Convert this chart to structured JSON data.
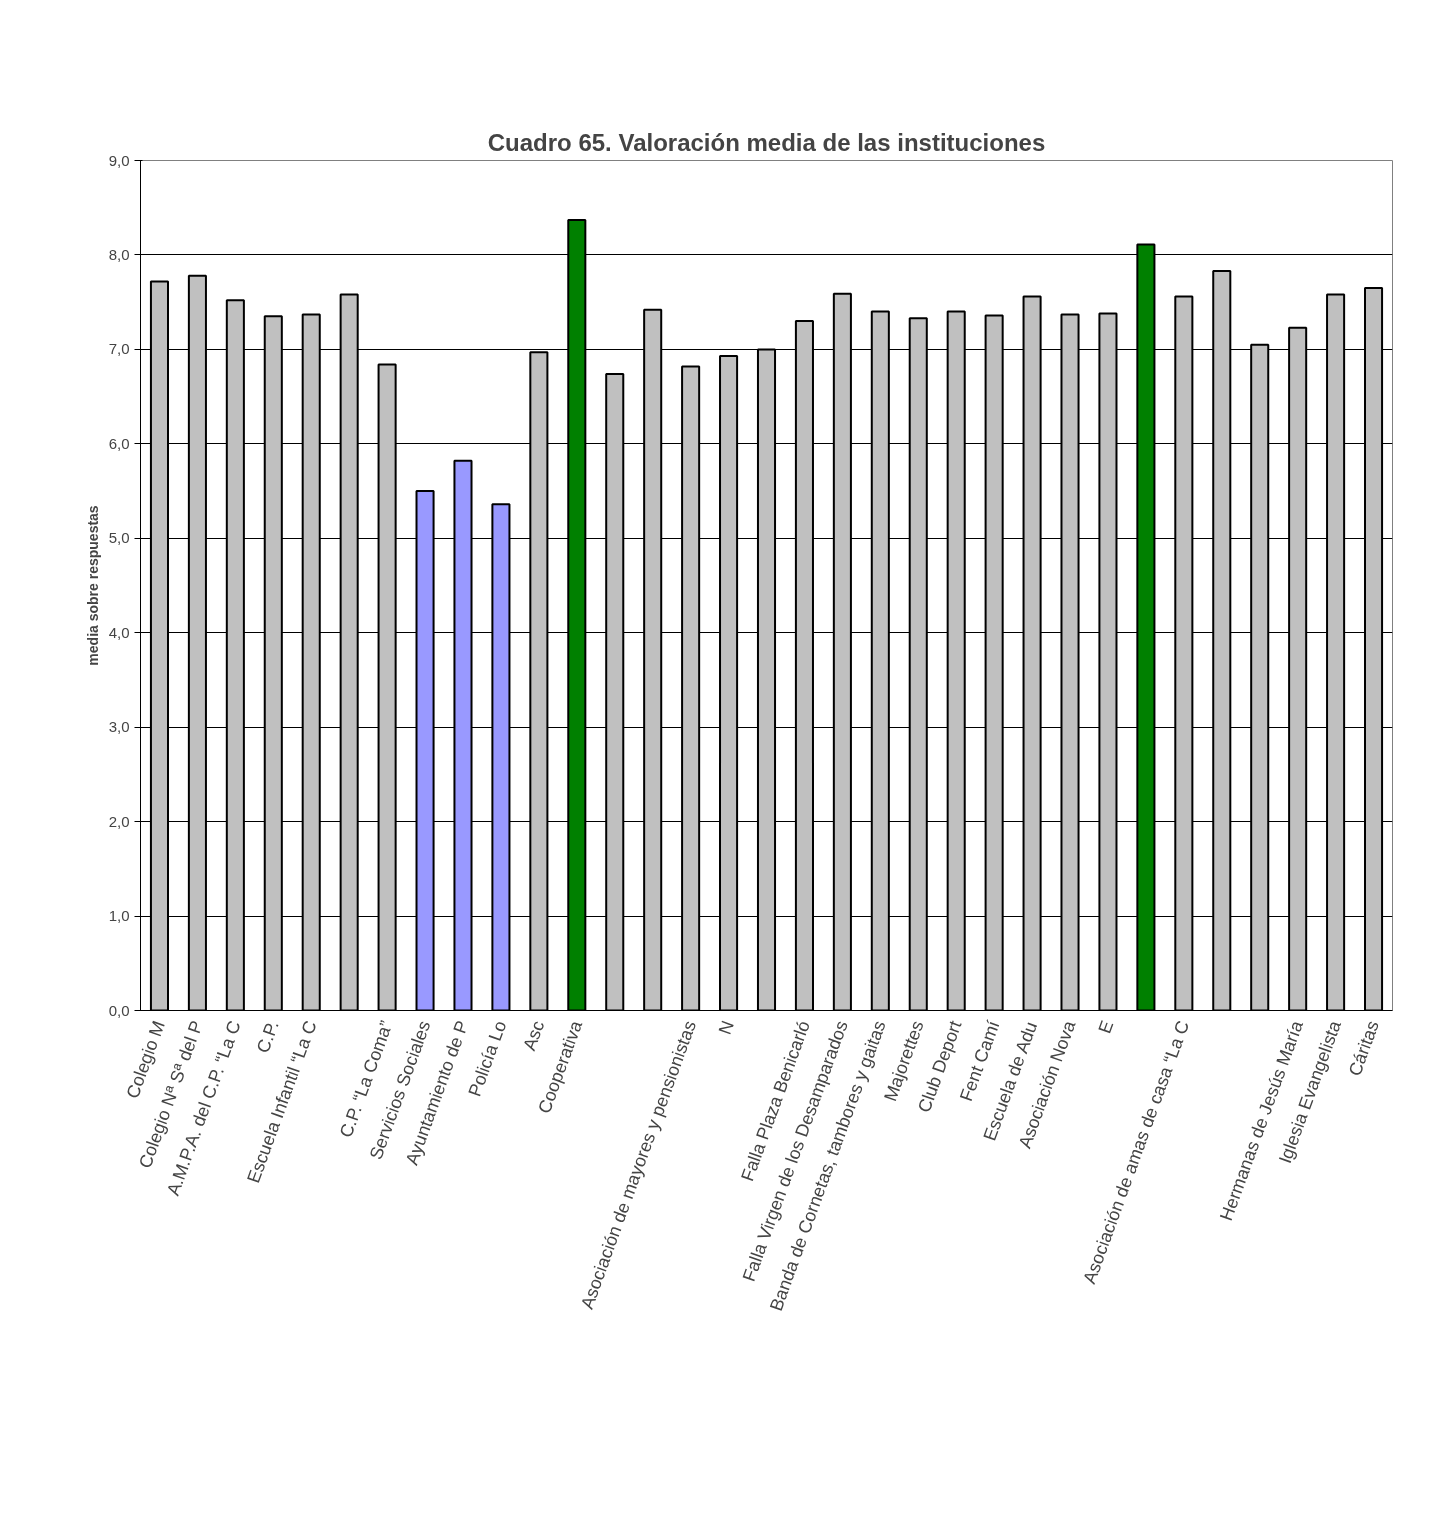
{
  "chart_data": {
    "type": "bar",
    "title": "Cuadro 65. Valoración media de las instituciones",
    "ylabel": "media sobre respuestas",
    "categories": [
      "Colegio M",
      "Colegio Nª Sª del P",
      "A.M.P.A. del C.P. “La C",
      "C.P.",
      "Escuela Infantil “La C",
      null,
      "C.P. “La Coma”",
      "Servicios Sociales",
      "Ayuntamiento de P",
      "Policía Lo",
      "Asc",
      "Cooperativa",
      null,
      null,
      "Asociación de mayores y pensionistas",
      "N",
      null,
      "Falla Plaza Benicarló",
      "Falla Virgen de los Desamparados",
      "Banda de Cornetas, tambores y gaitas",
      "Majorettes",
      "Club Deport",
      "Fent Camí",
      "Escuela de Adu",
      "Asociación Nova",
      "E",
      null,
      "Asociación de amas de casa “La C",
      null,
      null,
      "Hermanas de Jesús María",
      "Iglesia Evangelista",
      "Cáritas"
    ],
    "values": [
      7.72,
      7.78,
      7.52,
      7.35,
      7.37,
      7.58,
      6.84,
      5.5,
      5.82,
      5.36,
      6.97,
      8.37,
      6.74,
      7.42,
      6.82,
      6.93,
      7.0,
      7.3,
      7.59,
      7.4,
      7.33,
      7.4,
      7.36,
      7.56,
      7.37,
      7.38,
      8.11,
      7.56,
      7.83,
      7.05,
      7.23,
      7.58,
      7.65
    ],
    "colors": [
      "#c0c0c0",
      "#c0c0c0",
      "#c0c0c0",
      "#c0c0c0",
      "#c0c0c0",
      "#c0c0c0",
      "#c0c0c0",
      "#9999ff",
      "#9999ff",
      "#9999ff",
      "#c0c0c0",
      "#008000",
      "#c0c0c0",
      "#c0c0c0",
      "#c0c0c0",
      "#c0c0c0",
      "#c0c0c0",
      "#c0c0c0",
      "#c0c0c0",
      "#c0c0c0",
      "#c0c0c0",
      "#c0c0c0",
      "#c0c0c0",
      "#c0c0c0",
      "#c0c0c0",
      "#c0c0c0",
      "#008000",
      "#c0c0c0",
      "#c0c0c0",
      "#c0c0c0",
      "#c0c0c0",
      "#c0c0c0",
      "#c0c0c0"
    ],
    "ylim": [
      0,
      9
    ],
    "yticks": [
      {
        "value": 0,
        "label": "0,0"
      },
      {
        "value": 1,
        "label": "1,0"
      },
      {
        "value": 2,
        "label": "2,0"
      },
      {
        "value": 3,
        "label": "3,0"
      },
      {
        "value": 4,
        "label": "4,0"
      },
      {
        "value": 5,
        "label": "5,0"
      },
      {
        "value": 6,
        "label": "6,0"
      },
      {
        "value": 7,
        "label": "7,0"
      },
      {
        "value": 8,
        "label": "8,0"
      },
      {
        "value": 9,
        "label": "9,0"
      }
    ],
    "grid": "y"
  }
}
